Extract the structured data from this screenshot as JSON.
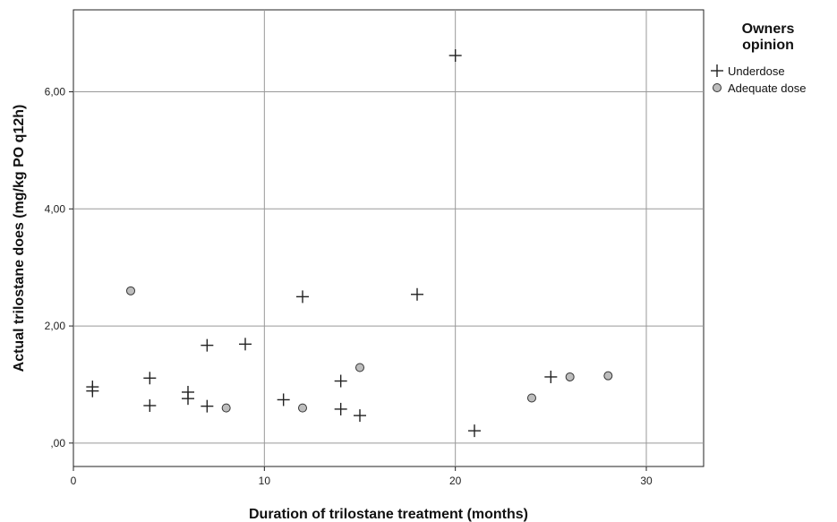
{
  "chart_data": {
    "type": "scatter",
    "xlabel": "Duration of trilostane treatment (months)",
    "ylabel": "Actual trilostane does (mg/kg PO q12h)",
    "xlim": [
      0,
      33
    ],
    "ylim": [
      -0.4,
      7.4
    ],
    "x_ticks": [
      0,
      10,
      20,
      30
    ],
    "x_tick_labels": [
      "0",
      "10",
      "20",
      "30"
    ],
    "y_ticks": [
      0,
      2,
      4,
      6
    ],
    "y_tick_labels": [
      ",00",
      "2,00",
      "4,00",
      "6,00"
    ],
    "grid": true,
    "legend": {
      "title_line1": "Owners",
      "title_line2": "opinion",
      "position": "right"
    },
    "series": [
      {
        "name": "Underdose",
        "marker": "plus",
        "color": "#222222",
        "points": [
          [
            1,
            0.96
          ],
          [
            1,
            0.89
          ],
          [
            4,
            1.11
          ],
          [
            4,
            0.64
          ],
          [
            6,
            0.87
          ],
          [
            6,
            0.76
          ],
          [
            7,
            1.67
          ],
          [
            7,
            0.63
          ],
          [
            9,
            1.69
          ],
          [
            11,
            0.74
          ],
          [
            12,
            2.5
          ],
          [
            14,
            1.06
          ],
          [
            14,
            0.58
          ],
          [
            15,
            0.47
          ],
          [
            18,
            2.54
          ],
          [
            20,
            6.62
          ],
          [
            21,
            0.21
          ],
          [
            25,
            1.13
          ]
        ]
      },
      {
        "name": "Adequate dose",
        "marker": "circle",
        "color": "#bdbdbd",
        "points": [
          [
            3,
            2.6
          ],
          [
            8,
            0.6
          ],
          [
            12,
            0.6
          ],
          [
            15,
            1.29
          ],
          [
            24,
            0.77
          ],
          [
            26,
            1.13
          ],
          [
            28,
            1.15
          ]
        ]
      }
    ]
  }
}
